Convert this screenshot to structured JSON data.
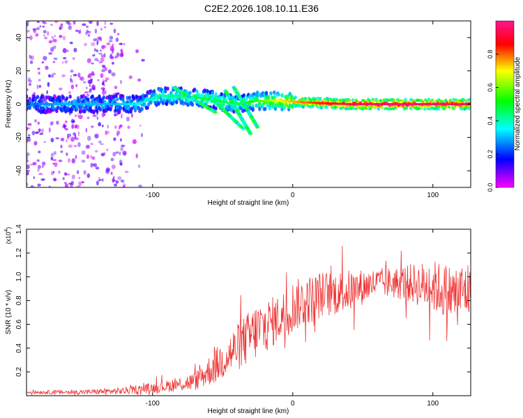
{
  "title": "C2E2.2026.108.10.11.E36",
  "chart_data": [
    {
      "type": "heatmap",
      "xlabel": "Height of straight line (km)",
      "ylabel": "Frequency (Hz)",
      "xlim": [
        -190,
        127
      ],
      "ylim": [
        -50,
        50
      ],
      "xticks": [
        -100,
        0,
        100
      ],
      "xtick_labels": [
        "-100",
        "0",
        "100"
      ],
      "yticks": [
        -40,
        -20,
        0,
        20,
        40
      ],
      "ytick_labels": [
        "-40",
        "-20",
        "0",
        "20",
        "40"
      ],
      "colorbar": {
        "label": "Normalized spectral amplitude",
        "range": [
          0,
          1
        ],
        "ticks": [
          0.0,
          0.2,
          0.4,
          0.6,
          0.8
        ],
        "tick_labels": [
          "0.0",
          "0.2",
          "0.4",
          "0.6",
          "0.8"
        ],
        "colors": [
          "#ff00ff",
          "#0000ff",
          "#00ffff",
          "#00ff00",
          "#ffff00",
          "#ff0000",
          "#ff1493"
        ]
      },
      "noise_region_x": [
        -190,
        -120
      ],
      "ridge": [
        {
          "x": -190,
          "f": 0,
          "amp": 0.25
        },
        {
          "x": -160,
          "f": 0,
          "amp": 0.3
        },
        {
          "x": -130,
          "f": 0,
          "amp": 0.3
        },
        {
          "x": -110,
          "f": 0,
          "amp": 0.35
        },
        {
          "x": -95,
          "f": 5,
          "amp": 0.4
        },
        {
          "x": -80,
          "f": 5,
          "amp": 0.45
        },
        {
          "x": -60,
          "f": 3,
          "amp": 0.5
        },
        {
          "x": -40,
          "f": 0,
          "amp": 0.45
        },
        {
          "x": -25,
          "f": 2,
          "amp": 0.55
        },
        {
          "x": -10,
          "f": 2,
          "amp": 0.7
        },
        {
          "x": 10,
          "f": 1,
          "amp": 0.8
        },
        {
          "x": 40,
          "f": 0,
          "amp": 0.95
        },
        {
          "x": 80,
          "f": 0,
          "amp": 0.97
        },
        {
          "x": 127,
          "f": 0,
          "amp": 0.95
        }
      ],
      "streaks": [
        {
          "x_start": -85,
          "f_start": 10,
          "x_end": -55,
          "f_end": -5
        },
        {
          "x_start": -60,
          "f_start": 5,
          "x_end": -35,
          "f_end": -15
        },
        {
          "x_start": -48,
          "f_start": 8,
          "x_end": -30,
          "f_end": -18
        },
        {
          "x_start": -42,
          "f_start": 10,
          "x_end": -25,
          "f_end": -14
        }
      ]
    },
    {
      "type": "line",
      "xlabel": "Height of straight line (km)",
      "ylabel": "SNR (10 * v/v)",
      "y_multiplier_label": "(x10",
      "y_multiplier_exp": "4",
      "y_multiplier_close": ")",
      "xlim": [
        -190,
        127
      ],
      "ylim": [
        0,
        1.4
      ],
      "xticks": [
        -100,
        0,
        100
      ],
      "xtick_labels": [
        "-100",
        "0",
        "100"
      ],
      "yticks": [
        0.2,
        0.4,
        0.6,
        0.8,
        1.0,
        1.2,
        1.4
      ],
      "ytick_labels": [
        "0.2",
        "0.4",
        "0.6",
        "0.8",
        "1.0",
        "1.2",
        "1.4"
      ],
      "color": "#ee3333",
      "envelope": [
        {
          "x": -190,
          "mean": 0.03,
          "spread": 0.015
        },
        {
          "x": -150,
          "mean": 0.03,
          "spread": 0.02
        },
        {
          "x": -120,
          "mean": 0.04,
          "spread": 0.03
        },
        {
          "x": -90,
          "mean": 0.08,
          "spread": 0.05
        },
        {
          "x": -70,
          "mean": 0.12,
          "spread": 0.08
        },
        {
          "x": -55,
          "mean": 0.25,
          "spread": 0.15
        },
        {
          "x": -40,
          "mean": 0.4,
          "spread": 0.2
        },
        {
          "x": -25,
          "mean": 0.55,
          "spread": 0.25
        },
        {
          "x": -10,
          "mean": 0.65,
          "spread": 0.2
        },
        {
          "x": 0,
          "mean": 0.75,
          "spread": 0.22
        },
        {
          "x": 20,
          "mean": 0.85,
          "spread": 0.2
        },
        {
          "x": 40,
          "mean": 0.88,
          "spread": 0.18
        },
        {
          "x": 60,
          "mean": 0.95,
          "spread": 0.12
        },
        {
          "x": 80,
          "mean": 0.95,
          "spread": 0.15
        },
        {
          "x": 100,
          "mean": 0.92,
          "spread": 0.22
        },
        {
          "x": 115,
          "mean": 0.85,
          "spread": 0.25
        },
        {
          "x": 127,
          "mean": 0.9,
          "spread": 0.25
        }
      ]
    }
  ]
}
